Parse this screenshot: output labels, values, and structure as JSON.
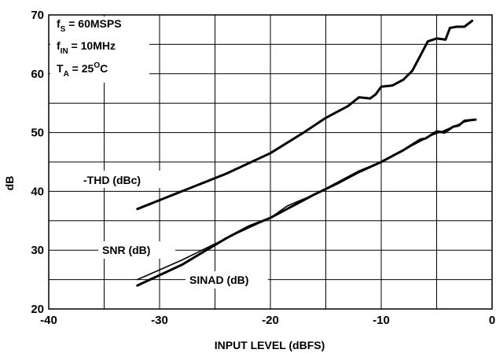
{
  "chart_data": {
    "type": "line",
    "title": "",
    "xlabel": "INPUT LEVEL (dBFS)",
    "ylabel": "dB",
    "xlim": [
      -40,
      0
    ],
    "ylim": [
      20,
      70
    ],
    "x_ticks": [
      "-40",
      "-30",
      "-20",
      "-10",
      "0"
    ],
    "y_ticks": [
      "20",
      "30",
      "40",
      "50",
      "60",
      "70"
    ],
    "grid": true,
    "conditions": {
      "fs": {
        "main": "f",
        "sub": "S",
        "rest": " = 60MSPS"
      },
      "fin": {
        "main": "f",
        "sub": "IN",
        "rest": " = 10MHz"
      },
      "ta": {
        "main": "T",
        "sub": "A",
        "rest": " = 25",
        "sup": "O",
        "tail": "C"
      }
    },
    "series": [
      {
        "name": "-THD (dBc)",
        "style": "thick",
        "points": [
          [
            -32,
            37
          ],
          [
            -28,
            40
          ],
          [
            -24,
            43
          ],
          [
            -20,
            46.5
          ],
          [
            -17,
            50
          ],
          [
            -15,
            52.5
          ],
          [
            -13,
            54.5
          ],
          [
            -12,
            56
          ],
          [
            -11,
            55.8
          ],
          [
            -10.5,
            56.5
          ],
          [
            -10,
            57.8
          ],
          [
            -9,
            58
          ],
          [
            -8,
            59
          ],
          [
            -7.2,
            60.5
          ],
          [
            -6.5,
            63
          ],
          [
            -5.8,
            65.5
          ],
          [
            -5,
            66
          ],
          [
            -4.2,
            65.8
          ],
          [
            -3.8,
            67.8
          ],
          [
            -3.2,
            68
          ],
          [
            -2.5,
            68
          ],
          [
            -1.8,
            69
          ]
        ]
      },
      {
        "name": "SNR (dB)",
        "style": "thin",
        "points": [
          [
            -32,
            25
          ],
          [
            -28,
            28.3
          ],
          [
            -24,
            32
          ],
          [
            -20,
            35.5
          ],
          [
            -18.5,
            37.5
          ],
          [
            -16,
            39.5
          ],
          [
            -14,
            41.5
          ],
          [
            -12,
            43.5
          ],
          [
            -10,
            45
          ],
          [
            -8,
            47
          ],
          [
            -6.5,
            48.5
          ],
          [
            -5.5,
            49.5
          ],
          [
            -4.5,
            50.2
          ],
          [
            -3.5,
            51
          ],
          [
            -2.5,
            51.8
          ],
          [
            -1.5,
            52.2
          ]
        ]
      },
      {
        "name": "SINAD (dB)",
        "style": "thick",
        "points": [
          [
            -32,
            24
          ],
          [
            -28,
            27.5
          ],
          [
            -24,
            32
          ],
          [
            -22,
            34
          ],
          [
            -20,
            35.5
          ],
          [
            -18,
            37.5
          ],
          [
            -16,
            39.5
          ],
          [
            -14,
            41.3
          ],
          [
            -12,
            43.3
          ],
          [
            -10,
            45
          ],
          [
            -8,
            47
          ],
          [
            -6.5,
            48.8
          ],
          [
            -6,
            49
          ],
          [
            -5,
            50.2
          ],
          [
            -4.3,
            50
          ],
          [
            -3.5,
            51
          ],
          [
            -3,
            51.2
          ],
          [
            -2.5,
            52
          ],
          [
            -1.5,
            52.2
          ]
        ]
      }
    ],
    "series_labels": {
      "thd": "-THD (dBc)",
      "snr": "SNR (dB)",
      "sinad": "SINAD (dB)"
    }
  }
}
